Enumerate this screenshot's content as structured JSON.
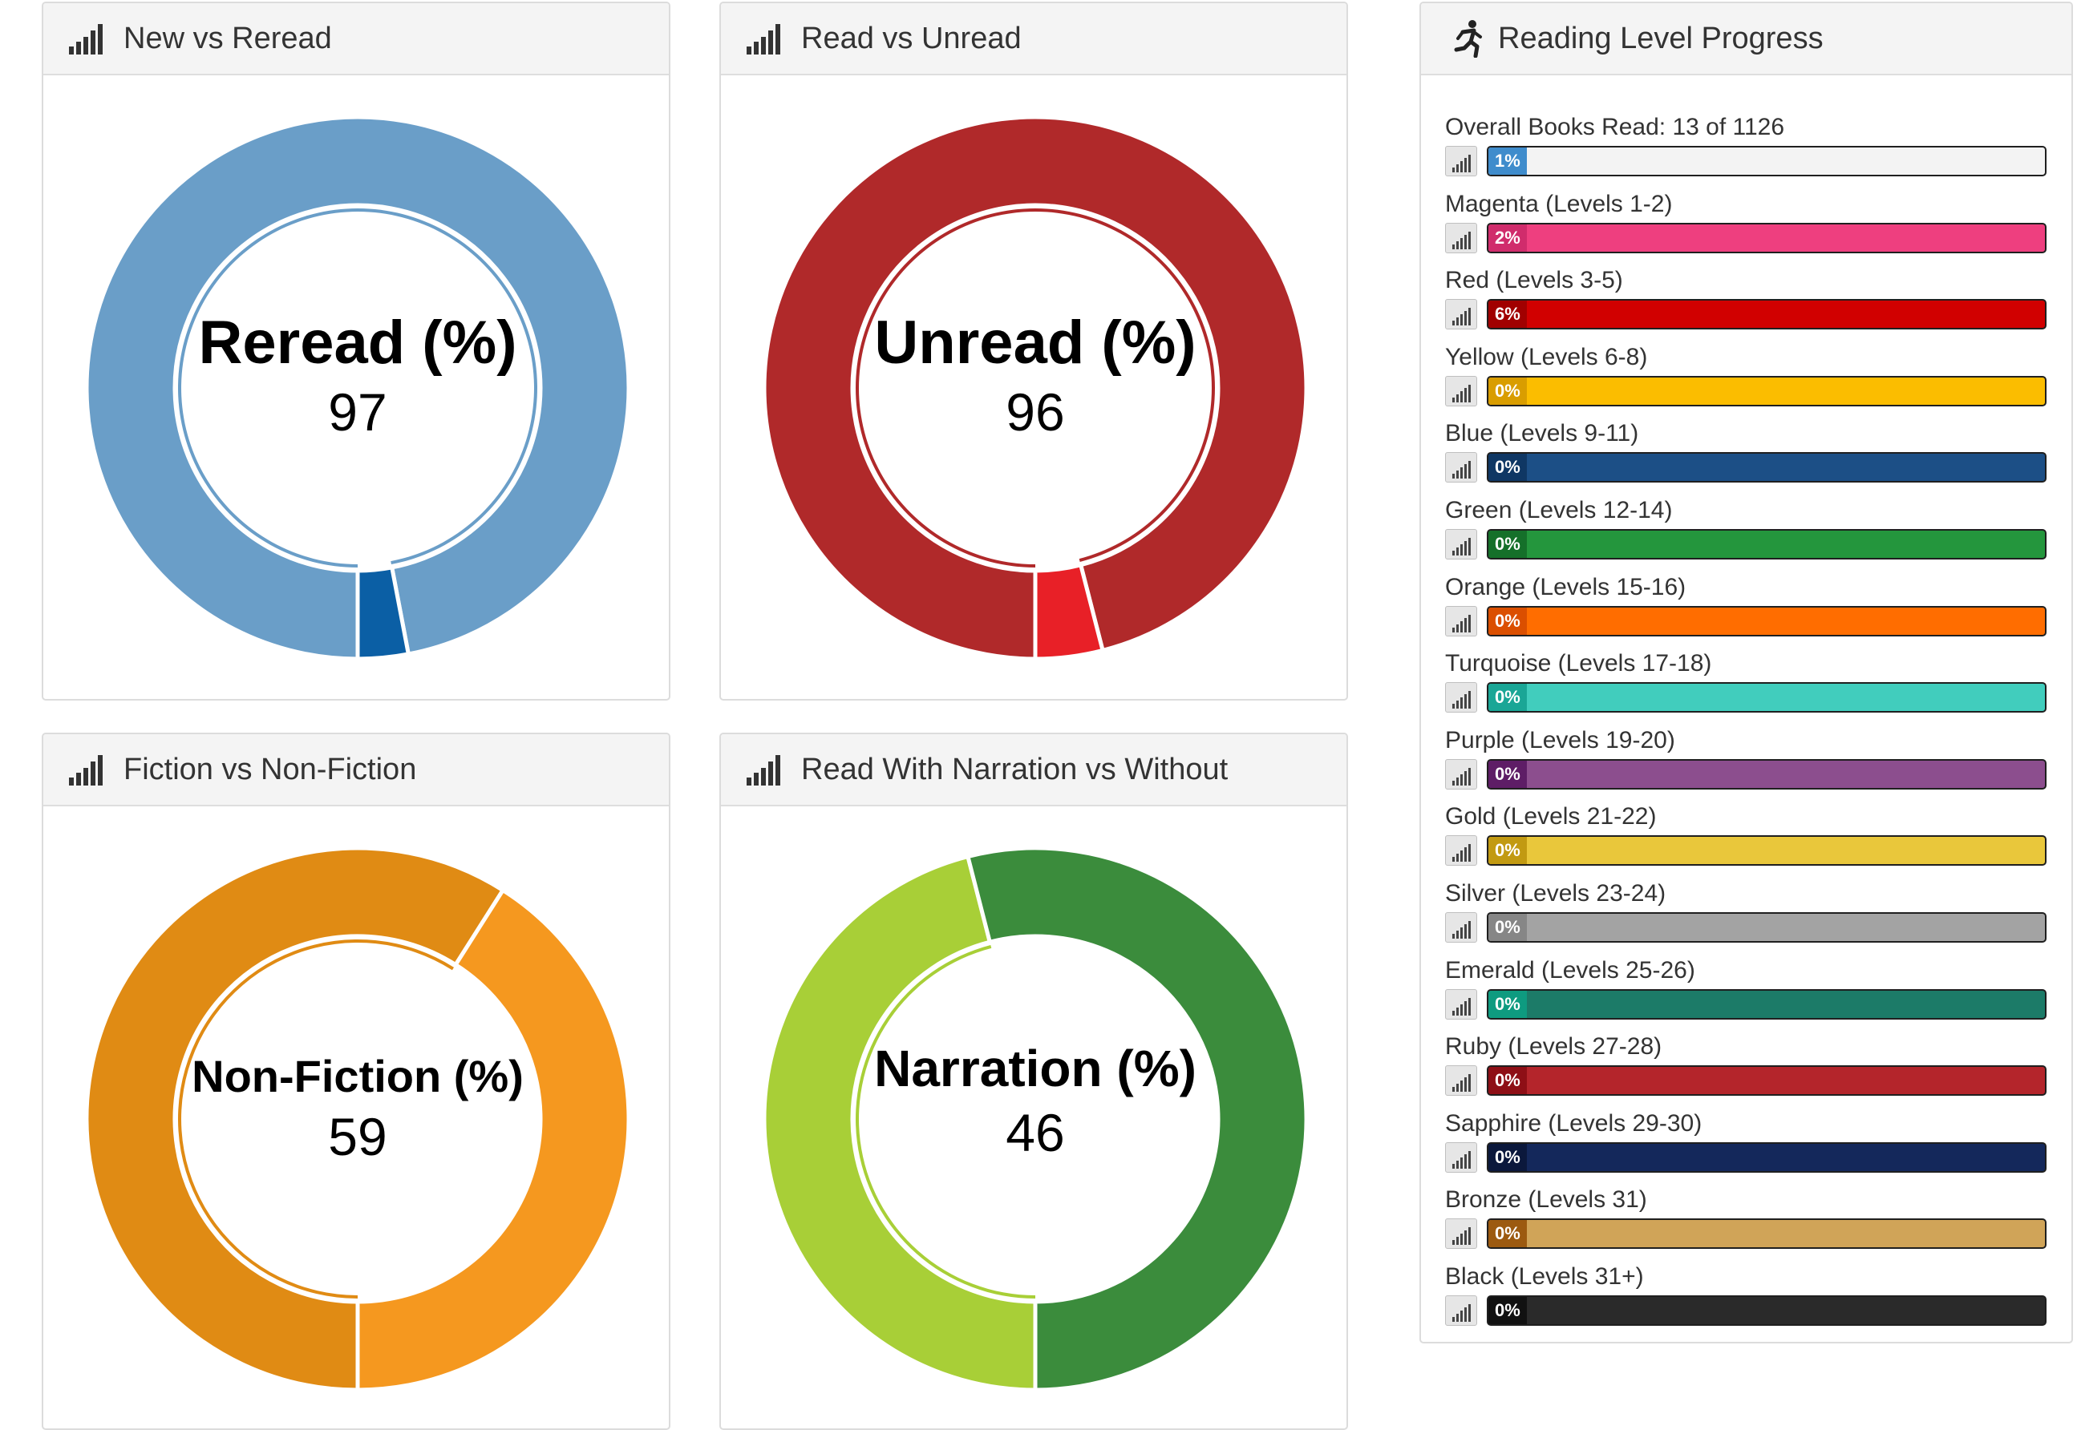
{
  "panels": {
    "new_vs_reread": {
      "title": "New vs Reread",
      "center_label": "Reread (%)",
      "center_value": "97"
    },
    "read_vs_unread": {
      "title": "Read vs Unread",
      "center_label": "Unread (%)",
      "center_value": "96"
    },
    "fiction_vs_nonfiction": {
      "title": "Fiction vs Non-Fiction",
      "center_label": "Non-Fiction (%)",
      "center_value": "59"
    },
    "narration": {
      "title": "Read With Narration vs Without",
      "center_label": "Narration (%)",
      "center_value": "46"
    }
  },
  "chart_data": [
    {
      "type": "pie",
      "subtype": "donut",
      "categories": [
        "Reread",
        "New"
      ],
      "values": [
        97,
        3
      ],
      "colors": [
        "#6a9ec8",
        "#0b5fa5"
      ]
    },
    {
      "type": "pie",
      "subtype": "donut",
      "categories": [
        "Unread",
        "Read"
      ],
      "values": [
        96,
        4
      ],
      "colors": [
        "#b0292a",
        "#e82027"
      ]
    },
    {
      "type": "pie",
      "subtype": "donut",
      "categories": [
        "Non-Fiction",
        "Fiction"
      ],
      "values": [
        59,
        41
      ],
      "colors": [
        "#e08b14",
        "#f5981f"
      ]
    },
    {
      "type": "pie",
      "subtype": "donut",
      "categories": [
        "Narration",
        "Without"
      ],
      "values": [
        46,
        54
      ],
      "colors": [
        "#a8cf37",
        "#3b8c3c"
      ]
    }
  ],
  "reading_progress": {
    "title": "Reading Level Progress",
    "icons": {
      "header": "running-person-icon",
      "row": "signal-bars-icon"
    },
    "levels": [
      {
        "label": "Overall Books Read: 13 of 1126",
        "badge": "1%",
        "percent": 1,
        "bar_color": "#f3f3f3",
        "badge_color": "#3f8ccc"
      },
      {
        "label": "Magenta (Levels 1-2)",
        "badge": "2%",
        "percent": 2,
        "bar_color": "#ee3f7f",
        "badge_color": "#d02c6c"
      },
      {
        "label": "Red (Levels 3-5)",
        "badge": "6%",
        "percent": 6,
        "bar_color": "#d10000",
        "badge_color": "#a10000"
      },
      {
        "label": "Yellow (Levels 6-8)",
        "badge": "0%",
        "percent": 0,
        "bar_color": "#fbbd00",
        "badge_color": "#d99d00"
      },
      {
        "label": "Blue (Levels 9-11)",
        "badge": "0%",
        "percent": 0,
        "bar_color": "#1c4f86",
        "badge_color": "#0f3764"
      },
      {
        "label": "Green (Levels 12-14)",
        "badge": "0%",
        "percent": 0,
        "bar_color": "#24963d",
        "badge_color": "#15702a"
      },
      {
        "label": "Orange (Levels 15-16)",
        "badge": "0%",
        "percent": 0,
        "bar_color": "#ff6d00",
        "badge_color": "#db4f00"
      },
      {
        "label": "Turquoise (Levels 17-18)",
        "badge": "0%",
        "percent": 0,
        "bar_color": "#41cdbd",
        "badge_color": "#1aa696"
      },
      {
        "label": "Purple (Levels 19-20)",
        "badge": "0%",
        "percent": 0,
        "bar_color": "#8c4e8e",
        "badge_color": "#5e1d66"
      },
      {
        "label": "Gold (Levels 21-22)",
        "badge": "0%",
        "percent": 0,
        "bar_color": "#e9c73b",
        "badge_color": "#c29a12"
      },
      {
        "label": "Silver (Levels 23-24)",
        "badge": "0%",
        "percent": 0,
        "bar_color": "#a3a3a3",
        "badge_color": "#868686"
      },
      {
        "label": "Emerald (Levels 25-26)",
        "badge": "0%",
        "percent": 0,
        "bar_color": "#1c7b68",
        "badge_color": "#0e9b80"
      },
      {
        "label": "Ruby (Levels 27-28)",
        "badge": "0%",
        "percent": 0,
        "bar_color": "#b4252b",
        "badge_color": "#8e0f16"
      },
      {
        "label": "Sapphire (Levels 29-30)",
        "badge": "0%",
        "percent": 0,
        "bar_color": "#14285b",
        "badge_color": "#0b183c"
      },
      {
        "label": "Bronze (Levels 31)",
        "badge": "0%",
        "percent": 0,
        "bar_color": "#d0a458",
        "badge_color": "#9c5a10"
      },
      {
        "label": "Black (Levels 31+)",
        "badge": "0%",
        "percent": 0,
        "bar_color": "#2a2a2a",
        "badge_color": "#111111"
      }
    ]
  }
}
